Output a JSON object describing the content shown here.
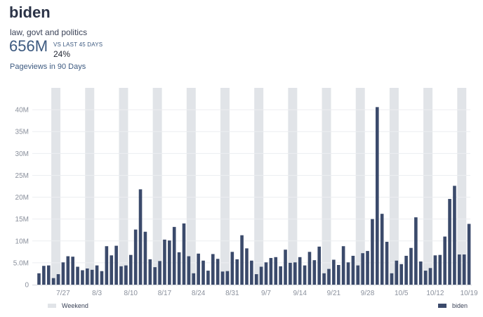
{
  "header": {
    "title": "biden",
    "category": "law, govt and politics",
    "total": "656M",
    "vs_label": "VS LAST 45 DAYS",
    "change": "24%",
    "pageviews_label": "Pageviews in 90 Days"
  },
  "colors": {
    "bar": "#3b4a6b",
    "weekend": "#e1e4e8",
    "grid": "#eceef1",
    "axis": "#d6d9de"
  },
  "legend": {
    "weekend_label": "Weekend",
    "series_label": "biden"
  },
  "chart_data": {
    "type": "bar",
    "title": "",
    "xlabel": "",
    "ylabel": "",
    "ylim": [
      0,
      45000000
    ],
    "yticks": [
      0,
      5000000,
      10000000,
      15000000,
      20000000,
      25000000,
      30000000,
      35000000,
      40000000
    ],
    "ytick_labels": [
      "0",
      "5.0M",
      "10M",
      "15M",
      "20M",
      "25M",
      "30M",
      "35M",
      "40M"
    ],
    "x_dates": [
      "2020-07-22",
      "2020-07-23",
      "2020-07-24",
      "2020-07-25",
      "2020-07-26",
      "2020-07-27",
      "2020-07-28",
      "2020-07-29",
      "2020-07-30",
      "2020-07-31",
      "2020-08-01",
      "2020-08-02",
      "2020-08-03",
      "2020-08-04",
      "2020-08-05",
      "2020-08-06",
      "2020-08-07",
      "2020-08-08",
      "2020-08-09",
      "2020-08-10",
      "2020-08-11",
      "2020-08-12",
      "2020-08-13",
      "2020-08-14",
      "2020-08-15",
      "2020-08-16",
      "2020-08-17",
      "2020-08-18",
      "2020-08-19",
      "2020-08-20",
      "2020-08-21",
      "2020-08-22",
      "2020-08-23",
      "2020-08-24",
      "2020-08-25",
      "2020-08-26",
      "2020-08-27",
      "2020-08-28",
      "2020-08-29",
      "2020-08-30",
      "2020-08-31",
      "2020-09-01",
      "2020-09-02",
      "2020-09-03",
      "2020-09-04",
      "2020-09-05",
      "2020-09-06",
      "2020-09-07",
      "2020-09-08",
      "2020-09-09",
      "2020-09-10",
      "2020-09-11",
      "2020-09-12",
      "2020-09-13",
      "2020-09-14",
      "2020-09-15",
      "2020-09-16",
      "2020-09-17",
      "2020-09-18",
      "2020-09-19",
      "2020-09-20",
      "2020-09-21",
      "2020-09-22",
      "2020-09-23",
      "2020-09-24",
      "2020-09-25",
      "2020-09-26",
      "2020-09-27",
      "2020-09-28",
      "2020-09-29",
      "2020-09-30",
      "2020-10-01",
      "2020-10-02",
      "2020-10-03",
      "2020-10-04",
      "2020-10-05",
      "2020-10-06",
      "2020-10-07",
      "2020-10-08",
      "2020-10-09",
      "2020-10-10",
      "2020-10-11",
      "2020-10-12",
      "2020-10-13",
      "2020-10-14",
      "2020-10-15",
      "2020-10-16",
      "2020-10-17",
      "2020-10-18",
      "2020-10-19"
    ],
    "xtick_labels": [
      {
        "date": "2020-07-27",
        "label": "7/27"
      },
      {
        "date": "2020-08-03",
        "label": "8/3"
      },
      {
        "date": "2020-08-10",
        "label": "8/10"
      },
      {
        "date": "2020-08-17",
        "label": "8/17"
      },
      {
        "date": "2020-08-24",
        "label": "8/24"
      },
      {
        "date": "2020-08-31",
        "label": "8/31"
      },
      {
        "date": "2020-09-07",
        "label": "9/7"
      },
      {
        "date": "2020-09-14",
        "label": "9/14"
      },
      {
        "date": "2020-09-21",
        "label": "9/21"
      },
      {
        "date": "2020-09-28",
        "label": "9/28"
      },
      {
        "date": "2020-10-05",
        "label": "10/5"
      },
      {
        "date": "2020-10-12",
        "label": "10/12"
      },
      {
        "date": "2020-10-19",
        "label": "10/19"
      }
    ],
    "weekend_bands": [
      [
        "2020-07-25",
        "2020-07-26"
      ],
      [
        "2020-08-01",
        "2020-08-02"
      ],
      [
        "2020-08-08",
        "2020-08-09"
      ],
      [
        "2020-08-15",
        "2020-08-16"
      ],
      [
        "2020-08-22",
        "2020-08-23"
      ],
      [
        "2020-08-29",
        "2020-08-30"
      ],
      [
        "2020-09-05",
        "2020-09-06"
      ],
      [
        "2020-09-12",
        "2020-09-13"
      ],
      [
        "2020-09-19",
        "2020-09-20"
      ],
      [
        "2020-09-26",
        "2020-09-27"
      ],
      [
        "2020-10-03",
        "2020-10-04"
      ],
      [
        "2020-10-10",
        "2020-10-11"
      ],
      [
        "2020-10-17",
        "2020-10-18"
      ]
    ],
    "series": [
      {
        "name": "biden",
        "values": [
          2600000,
          4300000,
          4400000,
          1500000,
          2400000,
          5100000,
          6500000,
          6400000,
          4100000,
          3300000,
          3700000,
          3400000,
          4400000,
          3100000,
          8800000,
          6700000,
          8900000,
          4200000,
          4400000,
          6800000,
          12600000,
          21800000,
          12100000,
          5800000,
          4000000,
          5400000,
          10300000,
          10100000,
          13200000,
          7400000,
          14000000,
          6500000,
          2600000,
          7100000,
          5500000,
          3200000,
          7000000,
          5900000,
          3000000,
          3100000,
          7500000,
          5800000,
          11300000,
          8300000,
          5500000,
          2400000,
          4100000,
          5100000,
          6100000,
          6300000,
          4200000,
          8000000,
          5000000,
          5100000,
          6300000,
          4400000,
          7500000,
          5600000,
          8700000,
          2600000,
          3600000,
          5700000,
          4500000,
          8800000,
          5100000,
          6600000,
          4400000,
          7200000,
          7700000,
          15000000,
          40600000,
          16200000,
          9800000,
          2600000,
          5500000,
          4700000,
          6600000,
          8400000,
          15400000,
          5300000,
          3200000,
          3800000,
          6700000,
          6800000,
          11000000,
          19600000,
          22600000,
          6900000,
          6900000,
          13900000
        ]
      }
    ]
  }
}
